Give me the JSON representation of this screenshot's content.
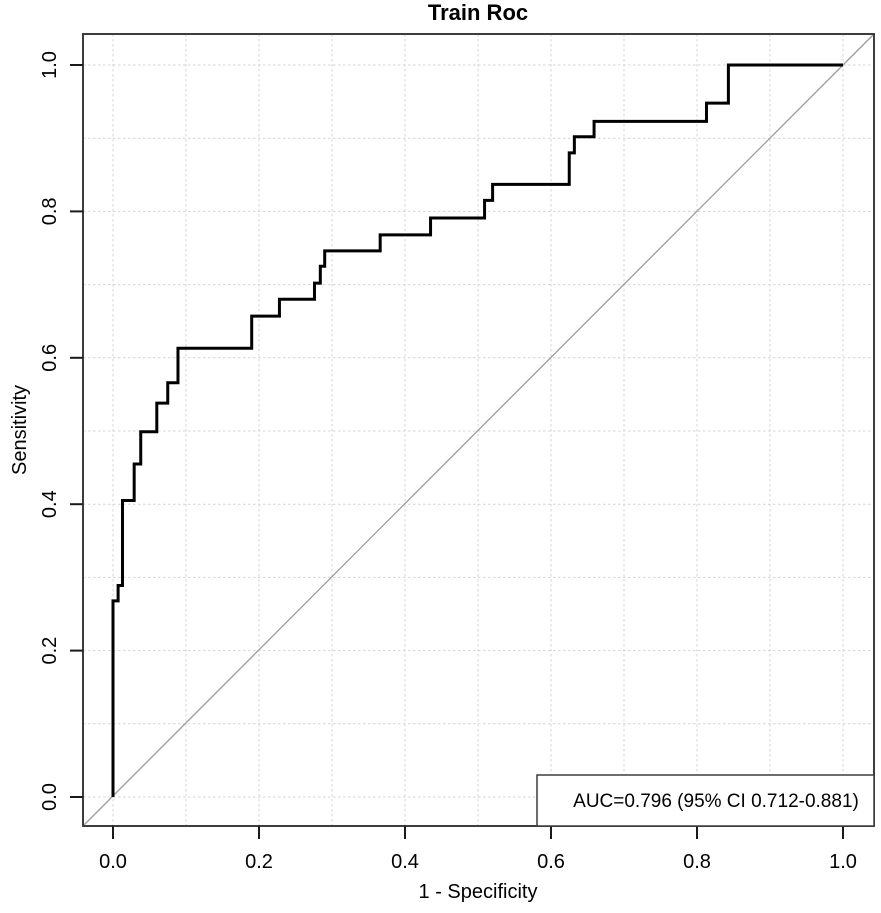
{
  "figure": {
    "title": "Train Roc",
    "x_axis": {
      "label": "1 - Specificity",
      "range": [
        0.0,
        1.0
      ],
      "ticks": [
        0.0,
        0.2,
        0.4,
        0.6,
        0.8,
        1.0
      ],
      "tick_labels": [
        "0.0",
        "0.2",
        "0.4",
        "0.6",
        "0.8",
        "1.0"
      ]
    },
    "y_axis": {
      "label": "Sensitivity",
      "range": [
        0.0,
        1.0
      ],
      "ticks": [
        0.0,
        0.2,
        0.4,
        0.6,
        0.8,
        1.0
      ],
      "tick_labels": [
        "0.0",
        "0.2",
        "0.4",
        "0.6",
        "0.8",
        "1.0"
      ]
    },
    "legend": {
      "text": "AUC=0.796 (95% CI 0.712-0.881)",
      "position": "bottomright"
    },
    "grid_step": 0.1,
    "colors": {
      "curve": "#000000",
      "diagonal": "#9c9c9c",
      "grid": "#d4d4d4",
      "frame": "#3d3d3d",
      "tick": "#1a1a1a",
      "legend_border": "#3d3d3d",
      "background": "#ffffff"
    }
  },
  "chart_data": {
    "type": "line",
    "subtype": "roc-step-curve",
    "title": "Train Roc",
    "xlabel": "1 - Specificity",
    "ylabel": "Sensitivity",
    "xlim": [
      0.0,
      1.0
    ],
    "ylim": [
      0.0,
      1.0
    ],
    "grid": "dotted gridlines every 0.1 on both axes",
    "legend_position": "bottomright",
    "auc": 0.796,
    "auc_ci_95": [
      0.712,
      0.881
    ],
    "annotations": [
      "AUC=0.796 (95% CI 0.712-0.881)"
    ],
    "series": [
      {
        "name": "ROC curve (train)",
        "color": "#000000",
        "style": "step",
        "points": [
          [
            0.0,
            0.0
          ],
          [
            0.0,
            0.268
          ],
          [
            0.007,
            0.268
          ],
          [
            0.007,
            0.289
          ],
          [
            0.013,
            0.289
          ],
          [
            0.013,
            0.405
          ],
          [
            0.029,
            0.405
          ],
          [
            0.029,
            0.455
          ],
          [
            0.038,
            0.455
          ],
          [
            0.038,
            0.499
          ],
          [
            0.06,
            0.499
          ],
          [
            0.06,
            0.538
          ],
          [
            0.075,
            0.538
          ],
          [
            0.075,
            0.566
          ],
          [
            0.089,
            0.566
          ],
          [
            0.089,
            0.613
          ],
          [
            0.19,
            0.613
          ],
          [
            0.19,
            0.657
          ],
          [
            0.228,
            0.657
          ],
          [
            0.228,
            0.68
          ],
          [
            0.276,
            0.68
          ],
          [
            0.276,
            0.702
          ],
          [
            0.284,
            0.702
          ],
          [
            0.284,
            0.725
          ],
          [
            0.29,
            0.725
          ],
          [
            0.29,
            0.746
          ],
          [
            0.366,
            0.746
          ],
          [
            0.366,
            0.768
          ],
          [
            0.435,
            0.768
          ],
          [
            0.435,
            0.791
          ],
          [
            0.509,
            0.791
          ],
          [
            0.509,
            0.815
          ],
          [
            0.52,
            0.815
          ],
          [
            0.52,
            0.837
          ],
          [
            0.625,
            0.837
          ],
          [
            0.625,
            0.88
          ],
          [
            0.632,
            0.88
          ],
          [
            0.632,
            0.902
          ],
          [
            0.659,
            0.902
          ],
          [
            0.659,
            0.923
          ],
          [
            0.813,
            0.923
          ],
          [
            0.813,
            0.948
          ],
          [
            0.843,
            0.948
          ],
          [
            0.843,
            1.0
          ],
          [
            1.0,
            1.0
          ]
        ]
      },
      {
        "name": "chance reference diagonal",
        "color": "#9c9c9c",
        "style": "line",
        "points": [
          [
            0.0,
            0.0
          ],
          [
            1.0,
            1.0
          ]
        ]
      }
    ]
  }
}
